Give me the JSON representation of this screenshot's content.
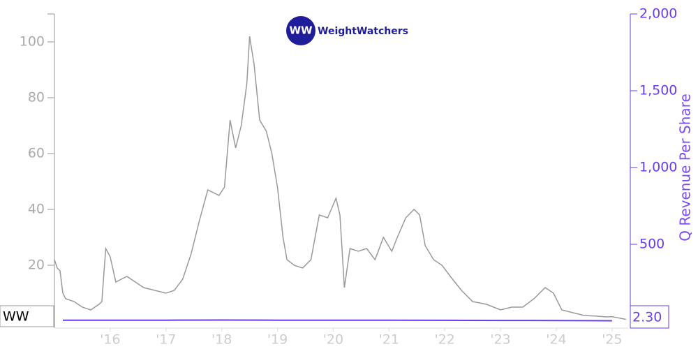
{
  "chart_data": {
    "type": "line",
    "logo": {
      "mark": "WW",
      "text": "WeightWatchers"
    },
    "y2_label": "Q Revenue Per Share",
    "x": [],
    "xlim": [
      2015,
      2025.29
    ],
    "xticks": [
      {
        "value": 2016,
        "label": "'16"
      },
      {
        "value": 2017,
        "label": "'17"
      },
      {
        "value": 2018,
        "label": "'18"
      },
      {
        "value": 2019,
        "label": "'19"
      },
      {
        "value": 2020,
        "label": "'20"
      },
      {
        "value": 2021,
        "label": "'21"
      },
      {
        "value": 2022,
        "label": "'22"
      },
      {
        "value": 2023,
        "label": "'23"
      },
      {
        "value": 2024,
        "label": "'24"
      },
      {
        "value": 2025,
        "label": "'25"
      }
    ],
    "ylim": [
      0,
      110
    ],
    "yticks": [
      20,
      40,
      60,
      80,
      100
    ],
    "y2lim": [
      0,
      2000
    ],
    "y2ticks": [
      500,
      {
        "value": 1000,
        "label": "1,000"
      },
      {
        "value": 1500,
        "label": "1,500"
      },
      {
        "value": 2000,
        "label": "2,000"
      }
    ],
    "series": [
      {
        "name": "WW",
        "color": "#999999",
        "x": [
          2015.0,
          2015.05,
          2015.1,
          2015.15,
          2015.2,
          2015.35,
          2015.5,
          2015.65,
          2015.8,
          2015.85,
          2015.92,
          2016.0,
          2016.1,
          2016.3,
          2016.45,
          2016.6,
          2016.8,
          2017.0,
          2017.15,
          2017.3,
          2017.45,
          2017.6,
          2017.75,
          2017.95,
          2018.05,
          2018.15,
          2018.25,
          2018.35,
          2018.45,
          2018.5,
          2018.58,
          2018.68,
          2018.8,
          2018.9,
          2019.0,
          2019.1,
          2019.17,
          2019.3,
          2019.45,
          2019.6,
          2019.75,
          2019.9,
          2020.05,
          2020.12,
          2020.2,
          2020.3,
          2020.45,
          2020.6,
          2020.75,
          2020.9,
          2021.05,
          2021.15,
          2021.3,
          2021.45,
          2021.55,
          2021.65,
          2021.8,
          2021.95,
          2022.1,
          2022.3,
          2022.5,
          2022.75,
          2023.0,
          2023.2,
          2023.4,
          2023.6,
          2023.8,
          2023.95,
          2024.1,
          2024.3,
          2024.5,
          2024.7,
          2024.9,
          2025.0,
          2025.1,
          2025.25
        ],
        "values": [
          22,
          19,
          18,
          10,
          8,
          7,
          5,
          4,
          6,
          7,
          26,
          23,
          14,
          16,
          14,
          12,
          11,
          10,
          11,
          15,
          24,
          36,
          47,
          45,
          48,
          72,
          62,
          70,
          85,
          102,
          92,
          72,
          68,
          60,
          48,
          30,
          22,
          20,
          19,
          22,
          38,
          37,
          44,
          38,
          12,
          26,
          25,
          26,
          22,
          30,
          25,
          30,
          37,
          40,
          38,
          27,
          22,
          20,
          16,
          11,
          7,
          6,
          4,
          5,
          5,
          8,
          12,
          10,
          4,
          3,
          2,
          1.8,
          1.5,
          1.6,
          1.2,
          0.6
        ]
      },
      {
        "name": "Q Revenue Per Share",
        "color": "#6a3de8",
        "axis": "y2",
        "x": [
          2015.15,
          2016.0,
          2017.0,
          2018.0,
          2019.0,
          2020.0,
          2021.0,
          2022.0,
          2023.0,
          2024.0,
          2025.0
        ],
        "values": [
          6,
          6,
          6,
          7,
          6,
          6,
          6,
          5,
          4,
          3.5,
          2.3
        ],
        "value_labels": [
          null,
          null,
          null,
          null,
          null,
          null,
          null,
          null,
          null,
          null,
          "2.30"
        ]
      }
    ]
  }
}
